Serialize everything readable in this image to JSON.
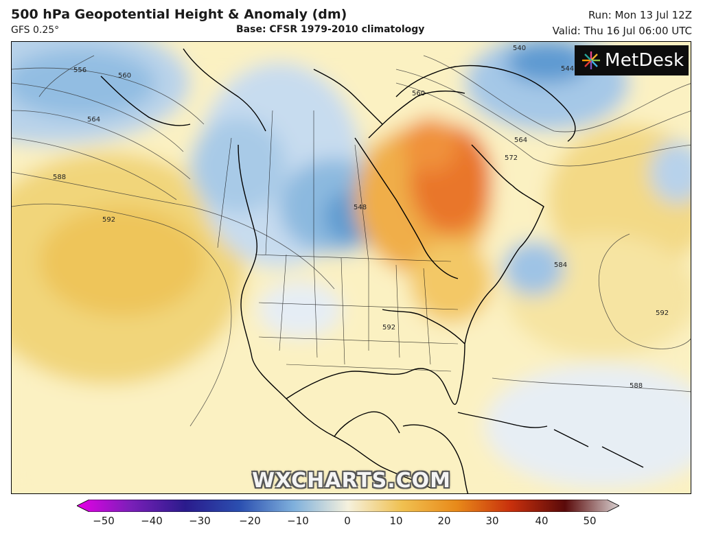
{
  "header": {
    "title": "500 hPa Geopotential Height & Anomaly (dm)",
    "model": "GFS 0.25°",
    "base": "Base: CFSR 1979-2010 climatology",
    "run": "Run: Mon 13 Jul 12Z",
    "valid": "Valid: Thu 16 Jul 06:00 UTC"
  },
  "logo": {
    "text": "MetDesk",
    "icon": "metdesk-starburst-icon"
  },
  "watermark": "WXCHARTS.COM",
  "contour_labels": [
    "556",
    "560",
    "564",
    "588",
    "592",
    "540",
    "544",
    "548",
    "560",
    "564",
    "572",
    "584",
    "592",
    "592",
    "588"
  ],
  "colorbar": {
    "ticks": [
      "−50",
      "−40",
      "−30",
      "−20",
      "−10",
      "0",
      "10",
      "20",
      "30",
      "40",
      "50"
    ],
    "colors": [
      "#e600e6",
      "#7a1fb8",
      "#2a1b8c",
      "#2b4fb0",
      "#7fb0dc",
      "#f5f1dd",
      "#f0c050",
      "#e88a1a",
      "#c8300c",
      "#5a0a0a",
      "#d8d0d0"
    ]
  },
  "colors": {
    "positive_anomaly_light": "#f7e7a6",
    "positive_anomaly_mid": "#eec55a",
    "positive_anomaly_strong": "#e9762a",
    "negative_anomaly_light": "#cfe2f1",
    "negative_anomaly_mid": "#7fb0dc",
    "coastline": "#000000"
  }
}
